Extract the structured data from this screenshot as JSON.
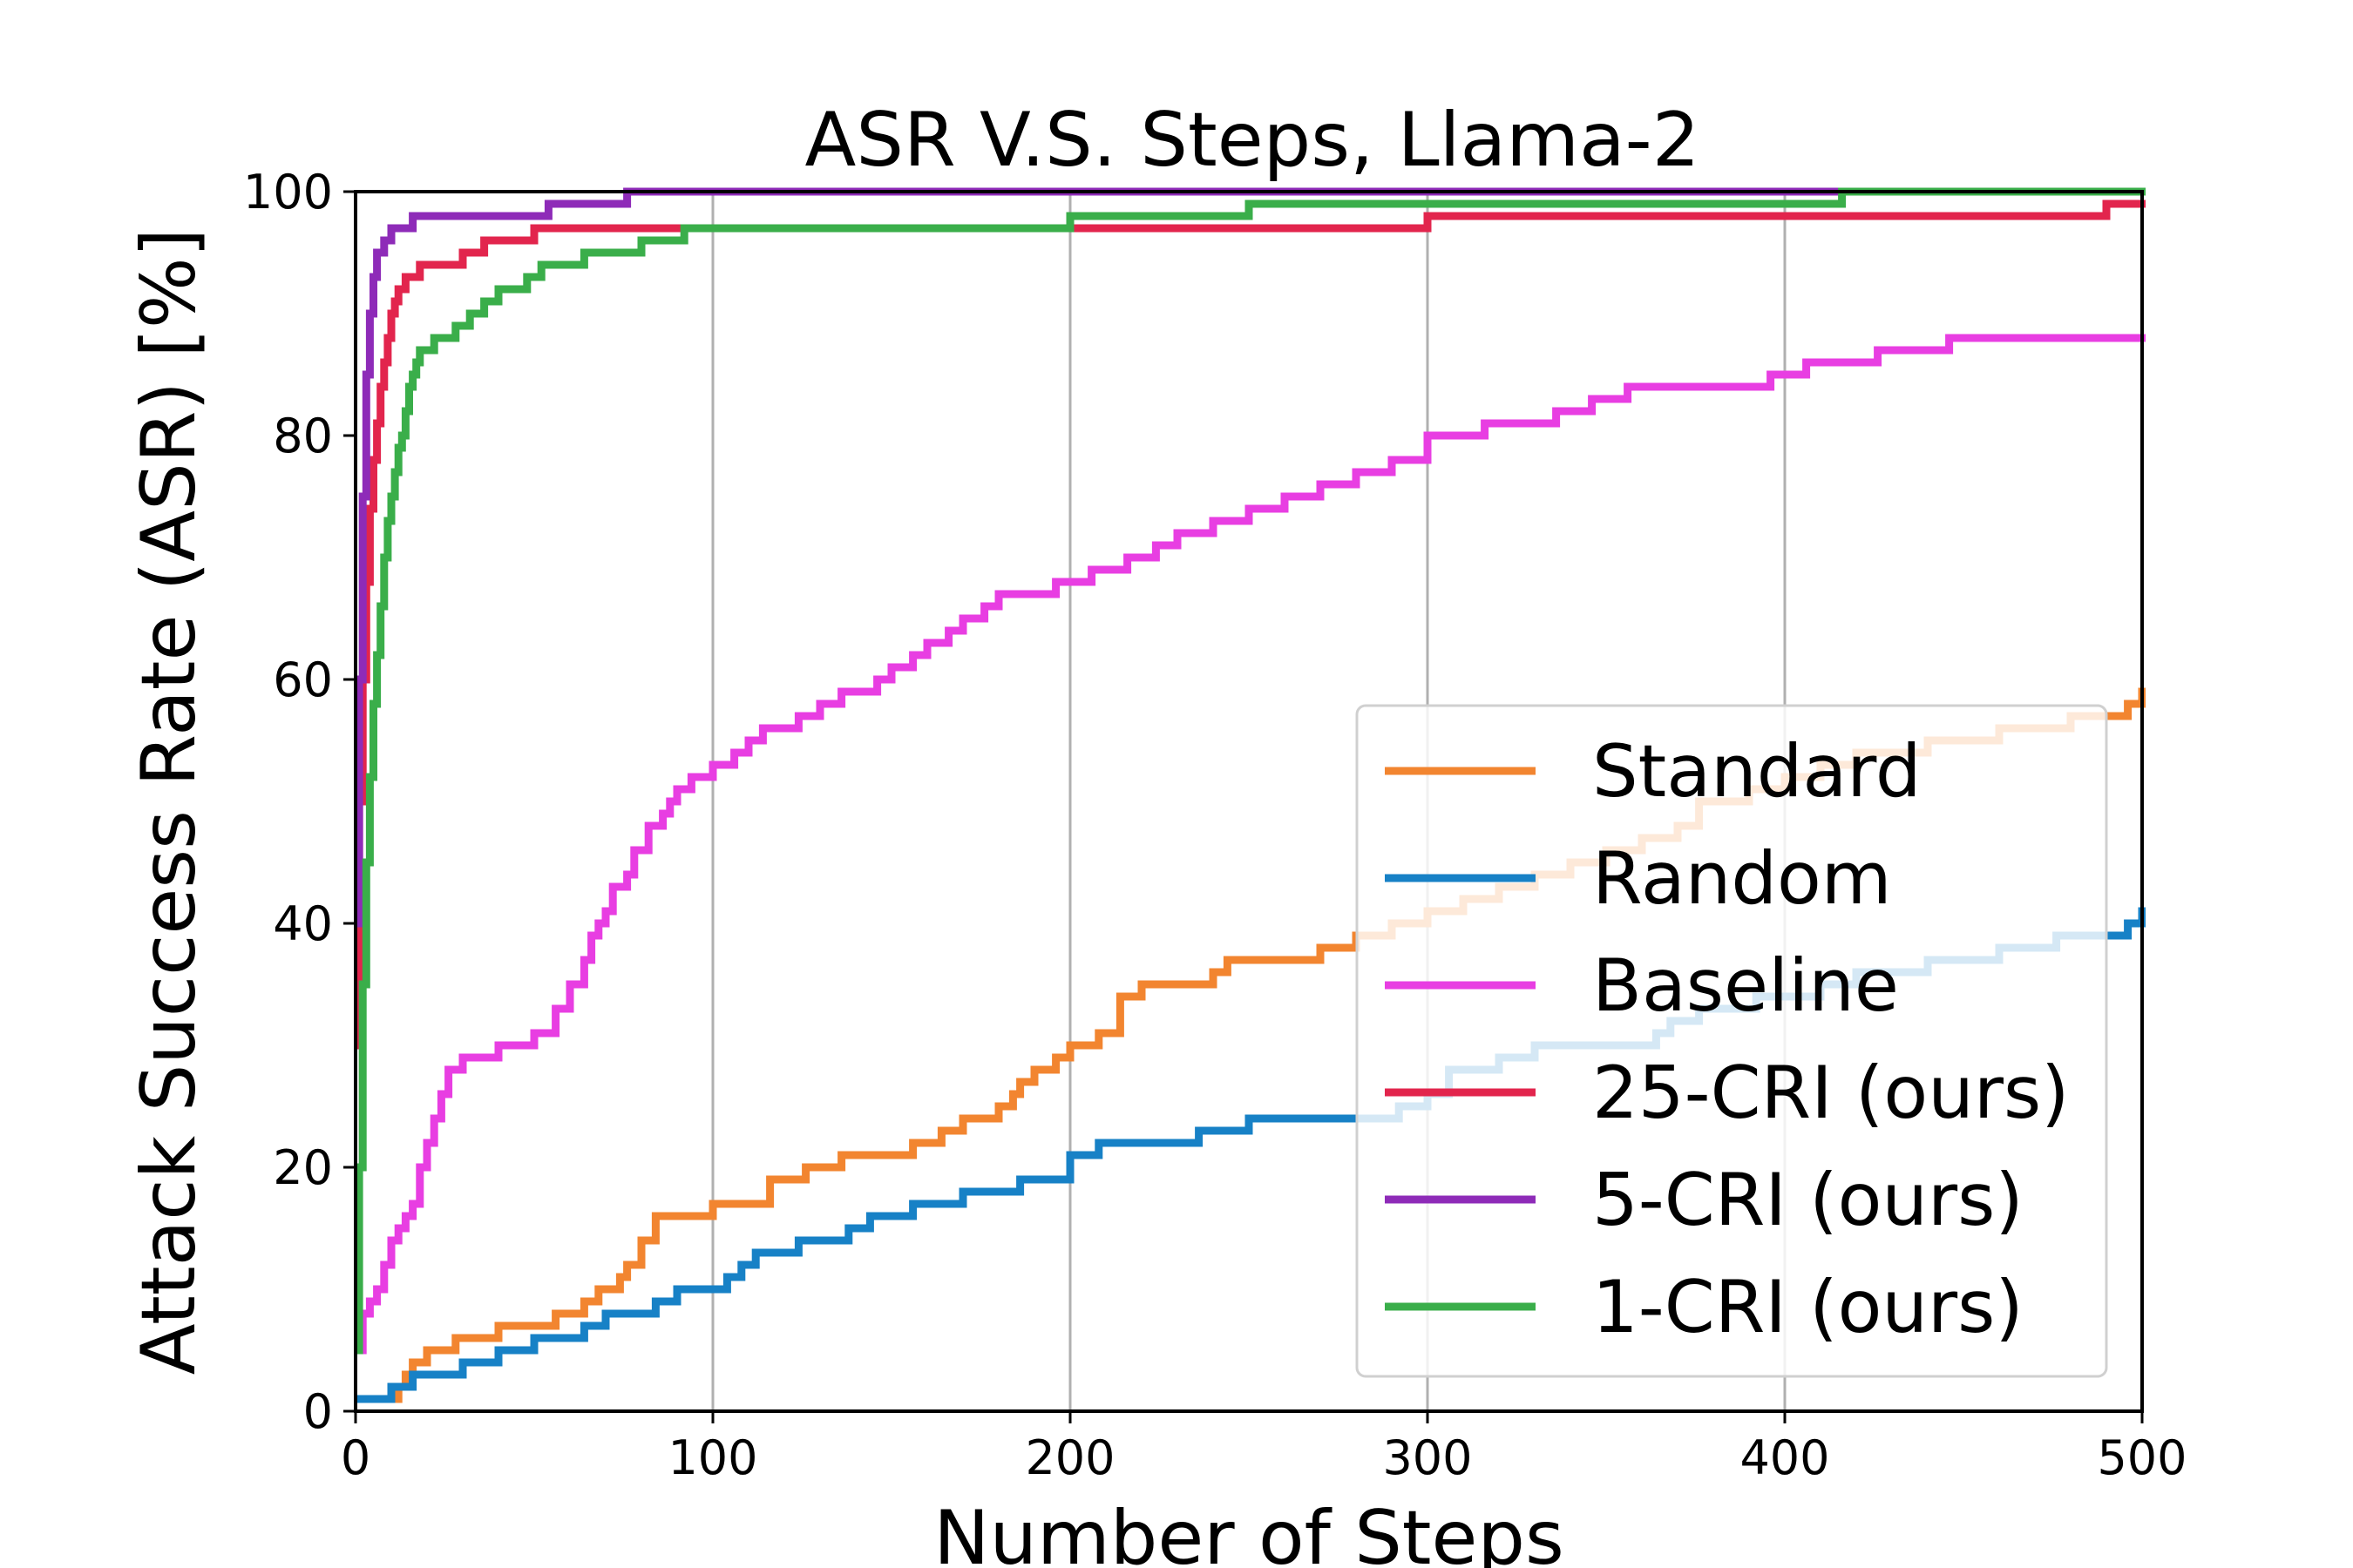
{
  "chart_data": {
    "type": "line",
    "title": "ASR V.S. Steps, Llama-2",
    "xlabel": "Number of Steps",
    "ylabel": "Attack Success Rate (ASR) [%]",
    "xlim": [
      0,
      500
    ],
    "ylim": [
      0,
      100
    ],
    "xticks": [
      "0",
      "100",
      "200",
      "300",
      "400",
      "500"
    ],
    "yticks": [
      "0",
      "20",
      "40",
      "60",
      "80",
      "100"
    ],
    "xtick_values": [
      0,
      100,
      200,
      300,
      400,
      500
    ],
    "ytick_values": [
      0,
      20,
      40,
      60,
      80,
      100
    ],
    "grid": "x-axis vertical lines",
    "legend_position": "lower-right",
    "series": [
      {
        "name": "Standard",
        "color": "#f28530",
        "step": true,
        "x": [
          0,
          12,
          14,
          16,
          20,
          24,
          28,
          34,
          40,
          46,
          56,
          64,
          68,
          74,
          76,
          80,
          84,
          96,
          100,
          106,
          116,
          120,
          126,
          136,
          140,
          148,
          156,
          160,
          164,
          168,
          170,
          176,
          180,
          184,
          186,
          190,
          196,
          200,
          204,
          208,
          214,
          220,
          226,
          234,
          240,
          244,
          260,
          270,
          280,
          290,
          300,
          310,
          320,
          330,
          340,
          350,
          360,
          370,
          376,
          390,
          400,
          410,
          420,
          440,
          460,
          480,
          490,
          496,
          500
        ],
        "y": [
          1,
          2,
          3,
          4,
          5,
          5,
          6,
          6,
          7,
          7,
          8,
          9,
          10,
          11,
          12,
          14,
          16,
          16,
          17,
          17,
          19,
          19,
          20,
          21,
          21,
          21,
          22,
          22,
          23,
          23,
          24,
          24,
          25,
          26,
          27,
          28,
          29,
          30,
          30,
          31,
          34,
          35,
          35,
          35,
          36,
          37,
          37,
          38,
          39,
          40,
          41,
          42,
          43,
          44,
          45,
          46,
          47,
          48,
          50,
          51,
          52,
          53,
          54,
          55,
          56,
          57,
          57,
          58,
          59
        ]
      },
      {
        "name": "Random",
        "color": "#1781c6",
        "step": true,
        "x": [
          0,
          10,
          16,
          22,
          30,
          40,
          50,
          64,
          70,
          76,
          84,
          90,
          104,
          108,
          112,
          124,
          130,
          138,
          144,
          150,
          156,
          170,
          178,
          186,
          200,
          208,
          220,
          236,
          250,
          264,
          280,
          292,
          300,
          306,
          320,
          330,
          350,
          364,
          368,
          376,
          392,
          410,
          420,
          440,
          460,
          476,
          496,
          500
        ],
        "y": [
          1,
          2,
          3,
          3,
          4,
          5,
          6,
          7,
          8,
          8,
          9,
          10,
          11,
          12,
          13,
          14,
          14,
          15,
          16,
          16,
          17,
          18,
          18,
          19,
          21,
          22,
          22,
          23,
          24,
          24,
          24,
          25,
          26,
          28,
          29,
          30,
          30,
          31,
          32,
          33,
          34,
          35,
          36,
          37,
          38,
          39,
          40,
          41
        ]
      },
      {
        "name": "Baseline",
        "color": "#e83ee2",
        "step": true,
        "x": [
          0,
          2,
          4,
          6,
          8,
          10,
          12,
          14,
          16,
          18,
          20,
          22,
          24,
          26,
          28,
          30,
          36,
          40,
          44,
          50,
          56,
          60,
          64,
          66,
          68,
          70,
          72,
          74,
          76,
          78,
          82,
          86,
          88,
          90,
          92,
          94,
          96,
          100,
          106,
          110,
          114,
          118,
          124,
          130,
          136,
          140,
          146,
          150,
          156,
          160,
          166,
          170,
          176,
          180,
          190,
          196,
          200,
          206,
          216,
          224,
          230,
          240,
          250,
          260,
          270,
          280,
          290,
          300,
          306,
          316,
          336,
          346,
          356,
          366,
          380,
          396,
          406,
          416,
          426,
          446,
          466,
          486,
          500
        ],
        "y": [
          5,
          8,
          9,
          10,
          12,
          14,
          15,
          16,
          17,
          20,
          22,
          24,
          26,
          28,
          28,
          29,
          29,
          30,
          30,
          31,
          33,
          35,
          37,
          39,
          40,
          41,
          43,
          43,
          44,
          46,
          48,
          49,
          50,
          51,
          51,
          52,
          52,
          53,
          54,
          55,
          56,
          56,
          57,
          58,
          59,
          59,
          60,
          61,
          62,
          63,
          64,
          65,
          66,
          67,
          67,
          68,
          68,
          69,
          70,
          71,
          72,
          73,
          74,
          75,
          76,
          77,
          78,
          80,
          80,
          81,
          82,
          83,
          84,
          84,
          84,
          85,
          86,
          86,
          87,
          88,
          88,
          88,
          88
        ]
      },
      {
        "name": "25-CRI (ours)",
        "color": "#e2254d",
        "step": true,
        "x": [
          0,
          1,
          2,
          3,
          4,
          5,
          6,
          7,
          8,
          9,
          10,
          11,
          12,
          14,
          16,
          18,
          20,
          24,
          30,
          36,
          40,
          44,
          50,
          60,
          70,
          80,
          100,
          120,
          160,
          200,
          240,
          280,
          300,
          340,
          380,
          420,
          460,
          490,
          500
        ],
        "y": [
          30,
          50,
          60,
          68,
          74,
          78,
          81,
          84,
          86,
          88,
          90,
          91,
          92,
          93,
          93,
          94,
          94,
          94,
          95,
          96,
          96,
          96,
          97,
          97,
          97,
          97,
          97,
          97,
          97,
          97,
          97,
          97,
          98,
          98,
          98,
          98,
          98,
          99,
          99
        ]
      },
      {
        "name": "5-CRI (ours)",
        "color": "#8e2bb8",
        "step": true,
        "x": [
          0,
          1,
          2,
          3,
          4,
          5,
          6,
          8,
          10,
          16,
          30,
          54,
          60,
          68,
          76,
          100,
          200,
          300,
          400,
          500
        ],
        "y": [
          40,
          60,
          75,
          85,
          90,
          93,
          95,
          96,
          97,
          98,
          98,
          99,
          99,
          99,
          100,
          100,
          100,
          100,
          100,
          100
        ]
      },
      {
        "name": "1-CRI (ours)",
        "color": "#3aae4a",
        "step": true,
        "x": [
          0,
          1,
          2,
          3,
          4,
          5,
          6,
          7,
          8,
          9,
          10,
          11,
          12,
          13,
          14,
          15,
          16,
          17,
          18,
          20,
          22,
          24,
          28,
          32,
          36,
          40,
          44,
          48,
          52,
          56,
          64,
          72,
          80,
          86,
          92,
          100,
          120,
          150,
          200,
          250,
          300,
          350,
          400,
          416,
          450,
          500
        ],
        "y": [
          5,
          20,
          35,
          45,
          52,
          58,
          62,
          66,
          70,
          73,
          75,
          77,
          79,
          80,
          82,
          84,
          85,
          86,
          87,
          87,
          88,
          88,
          89,
          90,
          91,
          92,
          92,
          93,
          94,
          94,
          95,
          95,
          96,
          96,
          97,
          97,
          97,
          97,
          98,
          99,
          99,
          99,
          99,
          100,
          100,
          100
        ]
      }
    ]
  }
}
